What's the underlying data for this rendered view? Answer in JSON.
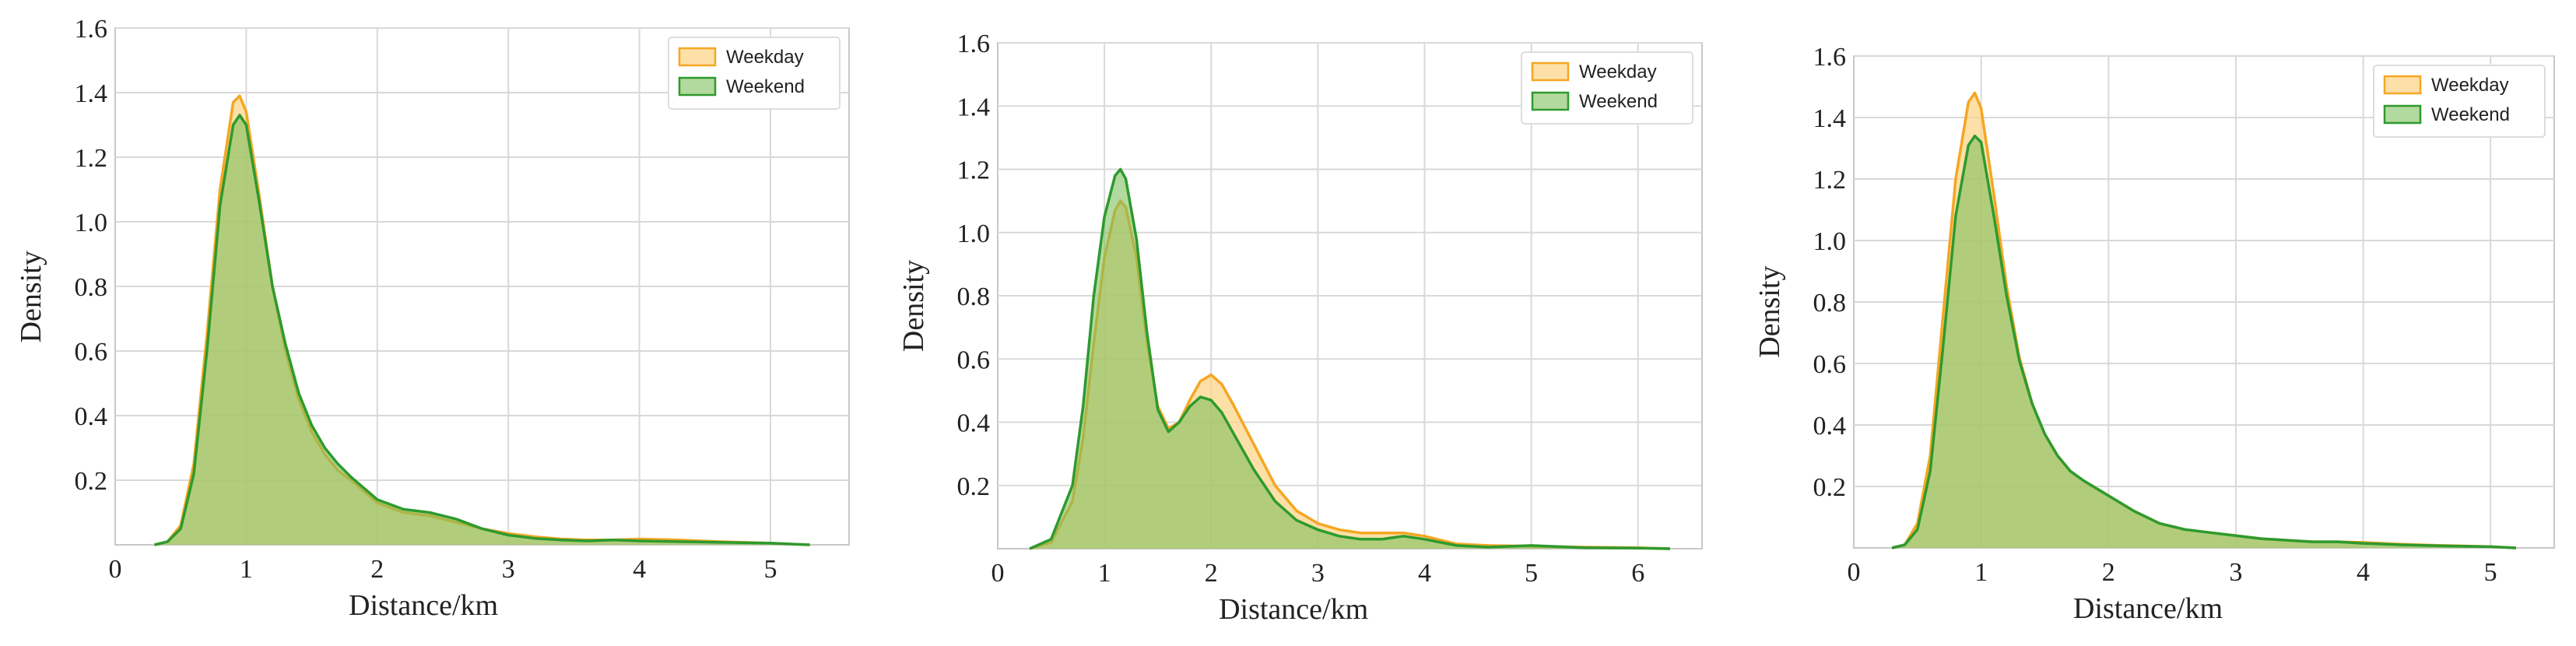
{
  "colors": {
    "weekday": "#f5a623",
    "weekday_fill": "#fbd58a",
    "weekend": "#2e9a2e",
    "weekend_fill": "#7fbf5e",
    "grid": "#d9d9d9",
    "axes": "#c8c8c8"
  },
  "chart_data": [
    {
      "type": "area",
      "xlabel": "Distance/km",
      "ylabel": "Density",
      "xlim": [
        0,
        5.6
      ],
      "ylim": [
        0,
        1.6
      ],
      "xticks": [
        0,
        1,
        2,
        3,
        4,
        5
      ],
      "yticks": [
        0.2,
        0.4,
        0.6,
        0.8,
        1.0,
        1.2,
        1.4,
        1.6
      ],
      "ytick_labels": [
        "0.2",
        "0.4",
        "0.6",
        "0.8",
        "1.0",
        "1.2",
        "1.4",
        "1.6"
      ],
      "grid": true,
      "legend": "top-right",
      "series": [
        {
          "name": "Weekday",
          "x": [
            0.3,
            0.4,
            0.5,
            0.6,
            0.7,
            0.8,
            0.9,
            0.95,
            1.0,
            1.1,
            1.2,
            1.3,
            1.4,
            1.5,
            1.6,
            1.7,
            1.8,
            2.0,
            2.2,
            2.4,
            2.6,
            2.8,
            3.0,
            3.2,
            3.4,
            3.6,
            3.8,
            4.0,
            4.3,
            4.6,
            5.0,
            5.3
          ],
          "values": [
            0.0,
            0.01,
            0.06,
            0.25,
            0.65,
            1.1,
            1.37,
            1.39,
            1.34,
            1.08,
            0.8,
            0.6,
            0.45,
            0.35,
            0.28,
            0.23,
            0.2,
            0.13,
            0.1,
            0.09,
            0.07,
            0.05,
            0.035,
            0.025,
            0.018,
            0.015,
            0.015,
            0.018,
            0.015,
            0.01,
            0.005,
            0.0
          ]
        },
        {
          "name": "Weekend",
          "x": [
            0.3,
            0.4,
            0.5,
            0.6,
            0.7,
            0.8,
            0.9,
            0.95,
            1.0,
            1.1,
            1.2,
            1.3,
            1.4,
            1.5,
            1.6,
            1.7,
            1.8,
            2.0,
            2.2,
            2.4,
            2.6,
            2.8,
            3.0,
            3.2,
            3.4,
            3.6,
            3.8,
            4.0,
            4.3,
            4.6,
            5.0,
            5.3
          ],
          "values": [
            0.0,
            0.01,
            0.05,
            0.22,
            0.6,
            1.05,
            1.3,
            1.33,
            1.3,
            1.06,
            0.8,
            0.62,
            0.47,
            0.37,
            0.3,
            0.25,
            0.21,
            0.14,
            0.11,
            0.1,
            0.08,
            0.05,
            0.03,
            0.02,
            0.015,
            0.012,
            0.015,
            0.012,
            0.01,
            0.008,
            0.005,
            0.0
          ]
        }
      ]
    },
    {
      "type": "area",
      "xlabel": "Distance/km",
      "ylabel": "Density",
      "xlim": [
        0,
        6.6
      ],
      "ylim": [
        0,
        1.6
      ],
      "xticks": [
        0,
        1,
        2,
        3,
        4,
        5,
        6
      ],
      "yticks": [
        0.2,
        0.4,
        0.6,
        0.8,
        1.0,
        1.2,
        1.4,
        1.6
      ],
      "ytick_labels": [
        "0.2",
        "0.4",
        "0.6",
        "0.8",
        "1.0",
        "1.2",
        "1.4",
        "1.6"
      ],
      "grid": true,
      "legend": "top-right",
      "series": [
        {
          "name": "Weekday",
          "x": [
            0.3,
            0.5,
            0.7,
            0.8,
            0.9,
            1.0,
            1.1,
            1.15,
            1.2,
            1.3,
            1.4,
            1.5,
            1.6,
            1.7,
            1.8,
            1.9,
            2.0,
            2.1,
            2.2,
            2.4,
            2.6,
            2.8,
            3.0,
            3.2,
            3.4,
            3.6,
            3.8,
            4.0,
            4.3,
            4.6,
            5.0,
            5.5,
            6.0,
            6.3
          ],
          "values": [
            0.0,
            0.02,
            0.15,
            0.35,
            0.65,
            0.92,
            1.07,
            1.1,
            1.08,
            0.92,
            0.65,
            0.45,
            0.38,
            0.4,
            0.47,
            0.53,
            0.55,
            0.52,
            0.46,
            0.33,
            0.2,
            0.12,
            0.08,
            0.06,
            0.05,
            0.05,
            0.05,
            0.04,
            0.015,
            0.01,
            0.008,
            0.005,
            0.003,
            0.0
          ]
        },
        {
          "name": "Weekend",
          "x": [
            0.3,
            0.5,
            0.7,
            0.8,
            0.9,
            1.0,
            1.1,
            1.15,
            1.2,
            1.3,
            1.4,
            1.5,
            1.6,
            1.7,
            1.8,
            1.9,
            2.0,
            2.1,
            2.2,
            2.4,
            2.6,
            2.8,
            3.0,
            3.2,
            3.4,
            3.6,
            3.8,
            4.0,
            4.3,
            4.6,
            5.0,
            5.5,
            6.0,
            6.3
          ],
          "values": [
            0.0,
            0.03,
            0.2,
            0.45,
            0.8,
            1.05,
            1.18,
            1.2,
            1.17,
            0.98,
            0.68,
            0.44,
            0.37,
            0.4,
            0.45,
            0.48,
            0.47,
            0.43,
            0.37,
            0.25,
            0.15,
            0.09,
            0.06,
            0.04,
            0.03,
            0.03,
            0.04,
            0.03,
            0.01,
            0.005,
            0.01,
            0.003,
            0.002,
            0.0
          ]
        }
      ]
    },
    {
      "type": "area",
      "xlabel": "Distance/km",
      "ylabel": "Density",
      "xlim": [
        0,
        5.5
      ],
      "ylim": [
        0,
        1.6
      ],
      "xticks": [
        0,
        1,
        2,
        3,
        4,
        5
      ],
      "yticks": [
        0.2,
        0.4,
        0.6,
        0.8,
        1.0,
        1.2,
        1.4,
        1.6
      ],
      "ytick_labels": [
        "0.2",
        "0.4",
        "0.6",
        "0.8",
        "1.0",
        "1.2",
        "1.4",
        "1.6"
      ],
      "grid": true,
      "legend": "top-right",
      "series": [
        {
          "name": "Weekday",
          "x": [
            0.3,
            0.4,
            0.5,
            0.6,
            0.7,
            0.8,
            0.9,
            0.95,
            1.0,
            1.1,
            1.2,
            1.3,
            1.4,
            1.5,
            1.6,
            1.7,
            1.8,
            2.0,
            2.2,
            2.4,
            2.6,
            2.8,
            3.0,
            3.2,
            3.4,
            3.6,
            3.8,
            4.0,
            4.3,
            4.6,
            5.0,
            5.2
          ],
          "values": [
            0.0,
            0.01,
            0.08,
            0.3,
            0.75,
            1.2,
            1.45,
            1.48,
            1.43,
            1.15,
            0.85,
            0.62,
            0.47,
            0.37,
            0.3,
            0.25,
            0.22,
            0.17,
            0.12,
            0.08,
            0.06,
            0.05,
            0.04,
            0.03,
            0.025,
            0.02,
            0.02,
            0.018,
            0.012,
            0.008,
            0.004,
            0.0
          ]
        },
        {
          "name": "Weekend",
          "x": [
            0.3,
            0.4,
            0.5,
            0.6,
            0.7,
            0.8,
            0.9,
            0.95,
            1.0,
            1.1,
            1.2,
            1.3,
            1.4,
            1.5,
            1.6,
            1.7,
            1.8,
            2.0,
            2.2,
            2.4,
            2.6,
            2.8,
            3.0,
            3.2,
            3.4,
            3.6,
            3.8,
            4.0,
            4.3,
            4.6,
            5.0,
            5.2
          ],
          "values": [
            0.0,
            0.01,
            0.06,
            0.25,
            0.65,
            1.08,
            1.31,
            1.34,
            1.32,
            1.08,
            0.82,
            0.61,
            0.47,
            0.37,
            0.3,
            0.25,
            0.22,
            0.17,
            0.12,
            0.08,
            0.06,
            0.05,
            0.04,
            0.03,
            0.025,
            0.02,
            0.02,
            0.015,
            0.01,
            0.007,
            0.004,
            0.0
          ]
        }
      ]
    }
  ]
}
